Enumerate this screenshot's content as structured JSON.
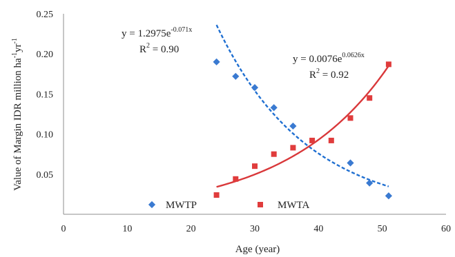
{
  "chart_data": {
    "type": "scatter",
    "xlabel": "Age (year)",
    "ylabel_parts": {
      "pre": "Value of Margin IDR million ha",
      "sup1": "-1",
      "mid": "yr",
      "sup2": "-1"
    },
    "xlim": [
      0,
      60
    ],
    "ylim": [
      0.0,
      0.25
    ],
    "x_ticks": [
      0,
      10,
      20,
      30,
      40,
      50,
      60
    ],
    "x_tick_labels": [
      "0",
      "10",
      "20",
      "30",
      "40",
      "50",
      "60"
    ],
    "y_ticks": [
      0.05,
      0.1,
      0.15,
      0.2,
      0.25
    ],
    "y_tick_labels": [
      "0.05",
      "0.10",
      "0.15",
      "0.20",
      "0.25"
    ],
    "grid": false,
    "legend_position": "bottom",
    "series": [
      {
        "name": "MWTP",
        "marker": "diamond",
        "color": "#3a7ad1",
        "x": [
          24,
          27,
          30,
          33,
          36,
          45,
          48,
          51
        ],
        "y": [
          0.19,
          0.172,
          0.158,
          0.133,
          0.11,
          0.064,
          0.039,
          0.023
        ],
        "trendline": {
          "kind": "exponential",
          "a": 1.2975,
          "b": -0.071,
          "x_range": [
            24,
            51
          ],
          "style": "dashed",
          "color": "#1f6fd1",
          "equation_parts": {
            "lhs": "y = 1.2975e",
            "exp": "-0.071x"
          },
          "r2_parts": {
            "pre": "R",
            "sup": "2",
            "post": " = 0.90"
          }
        }
      },
      {
        "name": "MWTA",
        "marker": "square",
        "color": "#e03c3c",
        "x": [
          24,
          27,
          30,
          33,
          36,
          39,
          42,
          45,
          48,
          51
        ],
        "y": [
          0.024,
          0.044,
          0.06,
          0.075,
          0.083,
          0.092,
          0.092,
          0.12,
          0.145,
          0.187
        ],
        "trendline": {
          "kind": "exponential",
          "a": 0.0076,
          "b": 0.0626,
          "x_range": [
            24,
            51
          ],
          "style": "solid",
          "color": "#d9383a",
          "equation_parts": {
            "lhs": "y = 0.0076e",
            "exp": "0.0626x"
          },
          "r2_parts": {
            "pre": "R",
            "sup": "2",
            "post": " = 0.92"
          }
        }
      }
    ]
  }
}
